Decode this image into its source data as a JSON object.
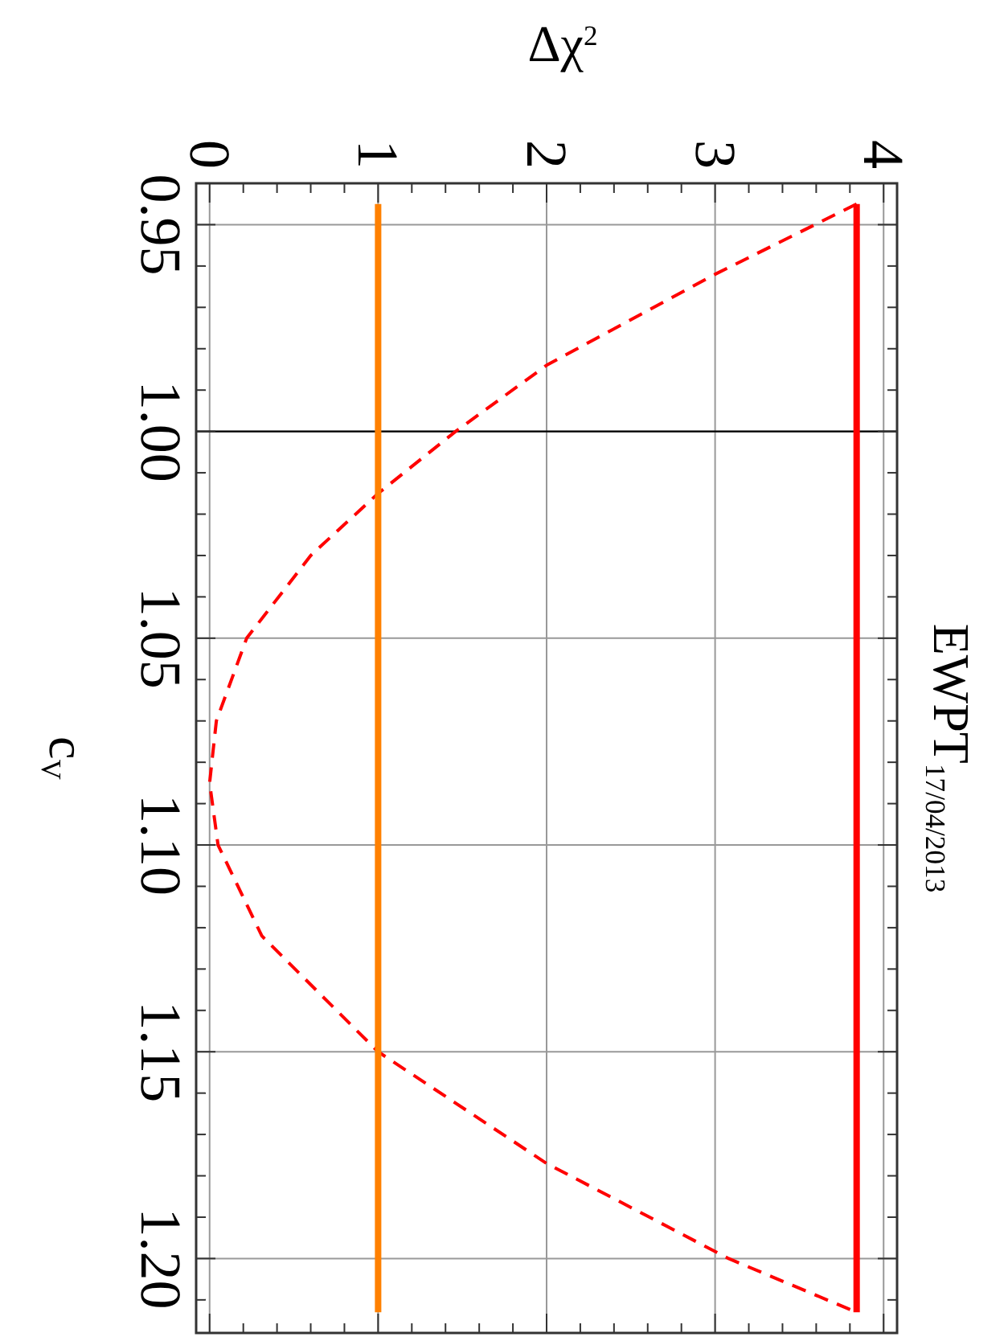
{
  "chart_data": {
    "type": "line",
    "title": "EWPT$_{17/04/2013}$",
    "xlabel": "Δχ$^{2}$",
    "ylabel": "c$_{V}$",
    "xlim": [
      -0.08,
      4.08
    ],
    "ylim": [
      1.218,
      0.94
    ],
    "xticks": [
      0,
      {
        "value": 0.2,
        "label": null
      },
      {
        "value": 0.4,
        "label": null
      },
      {
        "value": 0.6,
        "label": null
      },
      {
        "value": 0.8,
        "label": null
      },
      1,
      {
        "value": 1.2,
        "label": null
      },
      {
        "value": 1.4,
        "label": null
      },
      {
        "value": 1.6,
        "label": null
      },
      {
        "value": 1.8,
        "label": null
      },
      2,
      {
        "value": 2.2,
        "label": null
      },
      {
        "value": 2.4,
        "label": null
      },
      {
        "value": 2.6,
        "label": null
      },
      {
        "value": 2.8,
        "label": null
      },
      3,
      {
        "value": 3.2,
        "label": null
      },
      {
        "value": 3.4,
        "label": null
      },
      {
        "value": 3.6,
        "label": null
      },
      {
        "value": 3.8,
        "label": null
      },
      4
    ],
    "yticks": [
      {
        "value": 0.95,
        "label": "0.95"
      },
      {
        "value": 0.96,
        "label": null
      },
      {
        "value": 0.97,
        "label": null
      },
      {
        "value": 0.98,
        "label": null
      },
      {
        "value": 0.99,
        "label": null
      },
      {
        "value": 1.0,
        "label": "1.00"
      },
      {
        "value": 1.01,
        "label": null
      },
      {
        "value": 1.02,
        "label": null
      },
      {
        "value": 1.03,
        "label": null
      },
      {
        "value": 1.04,
        "label": null
      },
      {
        "value": 1.05,
        "label": "1.05"
      },
      {
        "value": 1.06,
        "label": null
      },
      {
        "value": 1.07,
        "label": null
      },
      {
        "value": 1.08,
        "label": null
      },
      {
        "value": 1.09,
        "label": null
      },
      {
        "value": 1.1,
        "label": "1.10"
      },
      {
        "value": 1.11,
        "label": null
      },
      {
        "value": 1.12,
        "label": null
      },
      {
        "value": 1.13,
        "label": null
      },
      {
        "value": 1.14,
        "label": null
      },
      {
        "value": 1.15,
        "label": "1.15"
      },
      {
        "value": 1.16,
        "label": null
      },
      {
        "value": 1.17,
        "label": null
      },
      {
        "value": 1.18,
        "label": null
      },
      {
        "value": 1.19,
        "label": null
      },
      {
        "value": 1.2,
        "label": "1.20"
      },
      {
        "value": 1.21,
        "label": null
      }
    ],
    "grid": true,
    "ref_lines": [
      {
        "axis": "y",
        "value": 1.0,
        "color": "#000000"
      }
    ],
    "series": [
      {
        "color": "#ff0000",
        "line_style": "dashed",
        "x": [
          3.84,
          3.0,
          2.0,
          1.46,
          1.0,
          0.6,
          0.22,
          0.04,
          0.0,
          0.05,
          0.31,
          1.0,
          2.0,
          3.08,
          3.84
        ],
        "values": [
          0.945,
          0.962,
          0.984,
          1.0,
          1.015,
          1.03,
          1.05,
          1.07,
          1.085,
          1.1,
          1.122,
          1.15,
          1.177,
          1.2,
          1.213
        ]
      },
      {
        "color": "#ff8000",
        "line_style": "solid",
        "x": [
          1,
          1
        ],
        "values": [
          0.945,
          1.213
        ]
      },
      {
        "color": "#ff0000",
        "line_style": "solid",
        "x": [
          3.84,
          3.84
        ],
        "values": [
          0.945,
          1.213
        ]
      }
    ]
  }
}
